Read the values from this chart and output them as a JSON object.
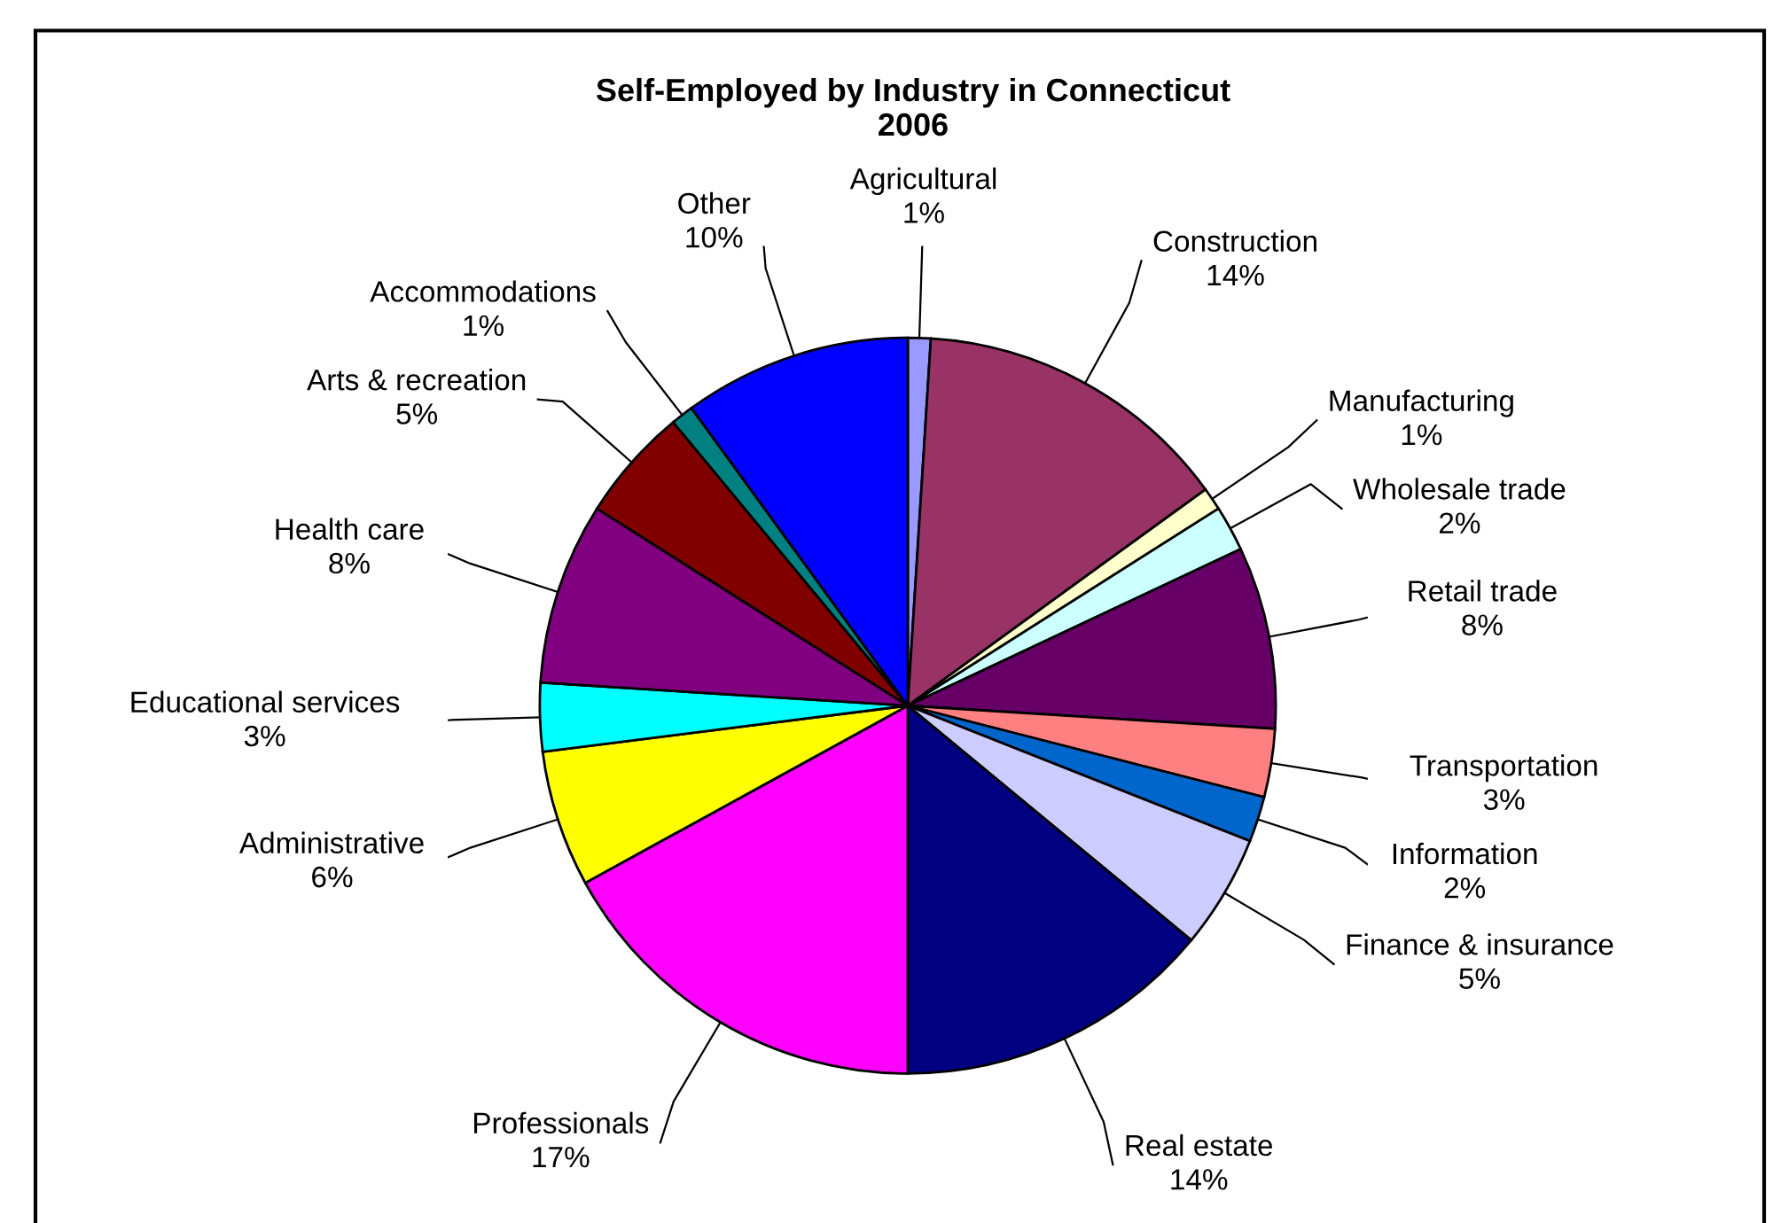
{
  "chart_data": {
    "type": "pie",
    "title": "Self-Employed by Industry in Connecticut\n2006",
    "categories": [
      "Agricultural",
      "Construction",
      "Manufacturing",
      "Wholesale trade",
      "Retail trade",
      "Transportation",
      "Information",
      "Finance & insurance",
      "Real estate",
      "Professionals",
      "Administrative",
      "Educational services",
      "Health care",
      "Arts & recreation",
      "Accommodations",
      "Other"
    ],
    "values": [
      1,
      14,
      1,
      2,
      8,
      3,
      2,
      5,
      14,
      17,
      6,
      3,
      8,
      5,
      1,
      10
    ],
    "value_labels": [
      "1%",
      "14%",
      "1%",
      "2%",
      "8%",
      "3%",
      "2%",
      "5%",
      "14%",
      "17%",
      "6%",
      "3%",
      "8%",
      "5%",
      "1%",
      "10%"
    ],
    "colors": [
      "#9999ff",
      "#993366",
      "#ffffcc",
      "#ccffff",
      "#660066",
      "#ff8080",
      "#0066cc",
      "#ccccff",
      "#000080",
      "#ff00ff",
      "#ffff00",
      "#00ffff",
      "#800080",
      "#800000",
      "#008080",
      "#0000ff"
    ],
    "legend": false
  }
}
